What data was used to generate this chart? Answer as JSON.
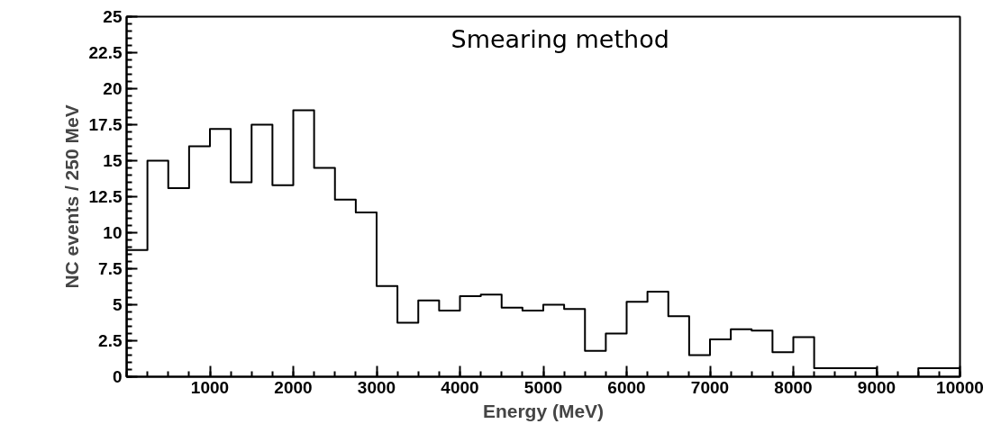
{
  "chart_data": {
    "type": "histogram",
    "xlabel": "Energy (MeV)",
    "ylabel": "NC events / 250 MeV",
    "annotations": [
      "Smearing method"
    ],
    "bins": [
      0,
      250,
      500,
      750,
      1000,
      1250,
      1500,
      1750,
      2000,
      2250,
      2500,
      2750,
      3000,
      3250,
      3500,
      3750,
      4000,
      4250,
      4500,
      4750,
      5000,
      5250,
      5500,
      5750,
      6000,
      6250,
      6500,
      6750,
      7000,
      7250,
      7500,
      7750,
      8000,
      8250,
      8500,
      8750,
      9000,
      9250,
      9500,
      9750,
      10000
    ],
    "values": [
      8.8,
      15.0,
      13.1,
      16.0,
      17.2,
      13.5,
      17.5,
      13.3,
      18.5,
      14.5,
      12.3,
      11.4,
      6.3,
      3.75,
      5.3,
      4.6,
      5.6,
      5.7,
      4.8,
      4.6,
      5.0,
      4.7,
      1.8,
      3.0,
      5.2,
      5.9,
      4.2,
      1.5,
      2.6,
      3.3,
      3.2,
      1.7,
      2.75,
      0.6,
      0.6,
      0.6,
      0,
      0,
      0.6,
      0.6
    ],
    "color": "#000000",
    "xlim": [
      0,
      10000
    ],
    "xticks": [
      1000,
      2000,
      3000,
      4000,
      5000,
      6000,
      7000,
      8000,
      9000,
      10000
    ],
    "ylim": [
      0,
      25
    ],
    "yticks": [
      0,
      2.5,
      5,
      7.5,
      10,
      12.5,
      15,
      17.5,
      20,
      22.5,
      25
    ],
    "grid": false
  }
}
